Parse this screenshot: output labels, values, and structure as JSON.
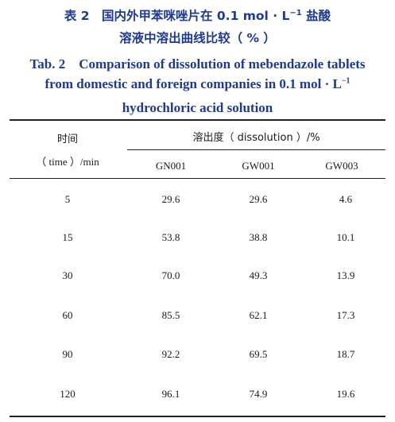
{
  "caption": {
    "cn_line1_prefix": "表 2　国内外甲苯咪唑片在 0.1 mol · L",
    "cn_line1_sup": "−1",
    "cn_line1_suffix": " 盐酸",
    "cn_line2": "溶液中溶出曲线比较（ % ）",
    "en_line1": "Tab. 2　Comparison of dissolution of mebendazole tablets",
    "en_line2_prefix": "from domestic and foreign companies in 0.1 mol · L",
    "en_line2_sup": "−1",
    "en_line3": "hydrochloric acid solution"
  },
  "table": {
    "time_header_cn": "时间",
    "time_header_en": "（ time ）/min",
    "dissolution_header": "溶出度（ dissolution ）/%",
    "columns": [
      "GN001",
      "GW001",
      "GW003"
    ],
    "rows": [
      {
        "time": "5",
        "values": [
          "29.6",
          "29.6",
          "4.6"
        ]
      },
      {
        "time": "15",
        "values": [
          "53.8",
          "38.8",
          "10.1"
        ]
      },
      {
        "time": "30",
        "values": [
          "70.0",
          "49.3",
          "13.9"
        ]
      },
      {
        "time": "60",
        "values": [
          "85.5",
          "62.1",
          "17.3"
        ]
      },
      {
        "time": "90",
        "values": [
          "92.2",
          "69.5",
          "18.7"
        ]
      },
      {
        "time": "120",
        "values": [
          "96.1",
          "74.9",
          "19.6"
        ]
      }
    ]
  }
}
